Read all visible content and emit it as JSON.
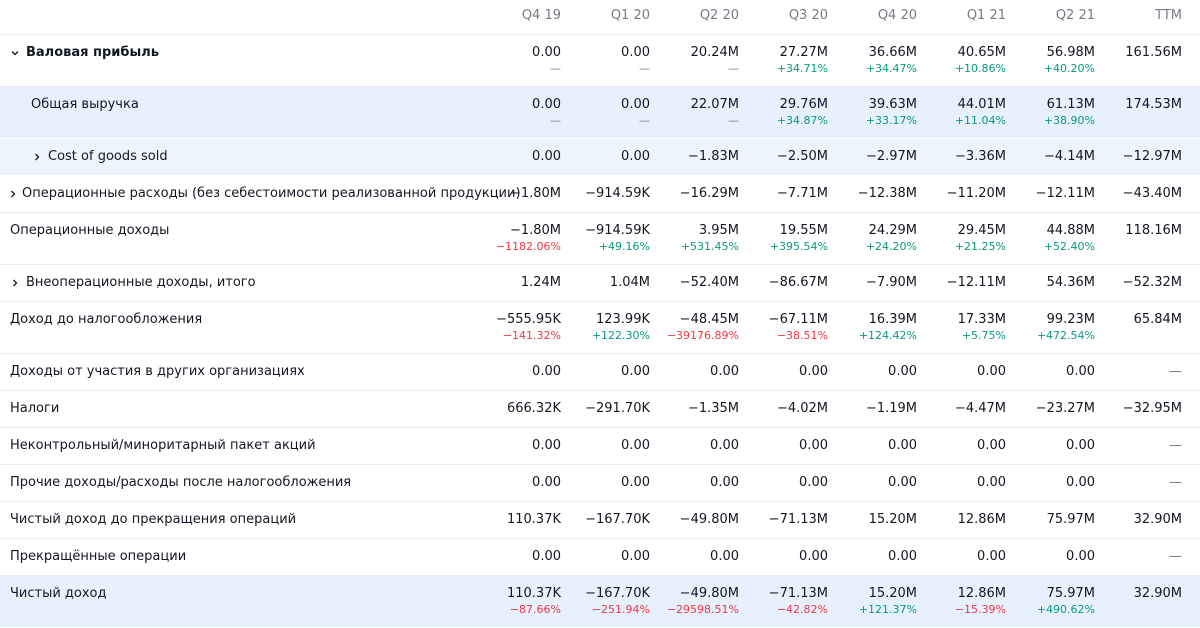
{
  "columns": [
    "Q4 19",
    "Q1 20",
    "Q2 20",
    "Q3 20",
    "Q4 20",
    "Q1 21",
    "Q2 21",
    "TTM"
  ],
  "rows": [
    {
      "label": "Валовая прибыль",
      "bold": true,
      "expand": "down",
      "indent": 0,
      "style": "normal",
      "values": [
        "0.00",
        "0.00",
        "20.24M",
        "27.27M",
        "36.66M",
        "40.65M",
        "56.98M",
        "161.56M"
      ],
      "changes": [
        "—",
        "—",
        "—",
        "+34.71%",
        "+34.47%",
        "+10.86%",
        "+40.20%",
        ""
      ]
    },
    {
      "label": "Общая выручка",
      "bold": false,
      "expand": "",
      "indent": 1,
      "style": "hl",
      "values": [
        "0.00",
        "0.00",
        "22.07M",
        "29.76M",
        "39.63M",
        "44.01M",
        "61.13M",
        "174.53M"
      ],
      "changes": [
        "—",
        "—",
        "—",
        "+34.87%",
        "+33.17%",
        "+11.04%",
        "+38.90%",
        ""
      ]
    },
    {
      "label": "Cost of goods sold",
      "bold": false,
      "expand": "right",
      "indent": 1,
      "style": "sub-hl",
      "values": [
        "0.00",
        "0.00",
        "−1.83M",
        "−2.50M",
        "−2.97M",
        "−3.36M",
        "−4.14M",
        "−12.97M"
      ],
      "changes": []
    },
    {
      "label": "Операционные расходы (без себестоимости реализованной продукции)",
      "bold": false,
      "expand": "right",
      "indent": 0,
      "style": "normal",
      "values": [
        "−1.80M",
        "−914.59K",
        "−16.29M",
        "−7.71M",
        "−12.38M",
        "−11.20M",
        "−12.11M",
        "−43.40M"
      ],
      "changes": []
    },
    {
      "label": "Операционные доходы",
      "bold": false,
      "expand": "",
      "indent": 0,
      "style": "normal",
      "values": [
        "−1.80M",
        "−914.59K",
        "3.95M",
        "19.55M",
        "24.29M",
        "29.45M",
        "44.88M",
        "118.16M"
      ],
      "changes": [
        "−1182.06%",
        "+49.16%",
        "+531.45%",
        "+395.54%",
        "+24.20%",
        "+21.25%",
        "+52.40%",
        ""
      ]
    },
    {
      "label": "Внеоперационные доходы, итого",
      "bold": false,
      "expand": "right",
      "indent": 0,
      "style": "normal",
      "values": [
        "1.24M",
        "1.04M",
        "−52.40M",
        "−86.67M",
        "−7.90M",
        "−12.11M",
        "54.36M",
        "−52.32M"
      ],
      "changes": []
    },
    {
      "label": "Доход до налогообложения",
      "bold": false,
      "expand": "",
      "indent": 0,
      "style": "normal",
      "values": [
        "−555.95K",
        "123.99K",
        "−48.45M",
        "−67.11M",
        "16.39M",
        "17.33M",
        "99.23M",
        "65.84M"
      ],
      "changes": [
        "−141.32%",
        "+122.30%",
        "−39176.89%",
        "−38.51%",
        "+124.42%",
        "+5.75%",
        "+472.54%",
        ""
      ]
    },
    {
      "label": "Доходы от участия в других организациях",
      "bold": false,
      "expand": "",
      "indent": 0,
      "style": "normal",
      "values": [
        "0.00",
        "0.00",
        "0.00",
        "0.00",
        "0.00",
        "0.00",
        "0.00",
        "—"
      ],
      "changes": []
    },
    {
      "label": "Налоги",
      "bold": false,
      "expand": "",
      "indent": 0,
      "style": "normal",
      "values": [
        "666.32K",
        "−291.70K",
        "−1.35M",
        "−4.02M",
        "−1.19M",
        "−4.47M",
        "−23.27M",
        "−32.95M"
      ],
      "changes": []
    },
    {
      "label": "Неконтрольный/миноритарный пакет акций",
      "bold": false,
      "expand": "",
      "indent": 0,
      "style": "normal",
      "values": [
        "0.00",
        "0.00",
        "0.00",
        "0.00",
        "0.00",
        "0.00",
        "0.00",
        "—"
      ],
      "changes": []
    },
    {
      "label": "Прочие доходы/расходы после налогообложения",
      "bold": false,
      "expand": "",
      "indent": 0,
      "style": "normal",
      "values": [
        "0.00",
        "0.00",
        "0.00",
        "0.00",
        "0.00",
        "0.00",
        "0.00",
        "—"
      ],
      "changes": []
    },
    {
      "label": "Чистый доход до прекращения операций",
      "bold": false,
      "expand": "",
      "indent": 0,
      "style": "normal",
      "values": [
        "110.37K",
        "−167.70K",
        "−49.80M",
        "−71.13M",
        "15.20M",
        "12.86M",
        "75.97M",
        "32.90M"
      ],
      "changes": []
    },
    {
      "label": "Прекращённые операции",
      "bold": false,
      "expand": "",
      "indent": 0,
      "style": "normal",
      "values": [
        "0.00",
        "0.00",
        "0.00",
        "0.00",
        "0.00",
        "0.00",
        "0.00",
        "—"
      ],
      "changes": []
    },
    {
      "label": "Чистый доход",
      "bold": false,
      "expand": "",
      "indent": 0,
      "style": "hl",
      "values": [
        "110.37K",
        "−167.70K",
        "−49.80M",
        "−71.13M",
        "15.20M",
        "12.86M",
        "75.97M",
        "32.90M"
      ],
      "changes": [
        "−87.66%",
        "−251.94%",
        "−29598.51%",
        "−42.82%",
        "+121.37%",
        "−15.39%",
        "+490.62%",
        ""
      ]
    }
  ],
  "colors": {
    "positive": "#089981",
    "negative": "#f23645",
    "highlight": "#e7f0fd",
    "muted": "#787b86"
  },
  "icons": {
    "expand_down": "chevron-down-icon",
    "expand_right": "chevron-right-icon"
  }
}
